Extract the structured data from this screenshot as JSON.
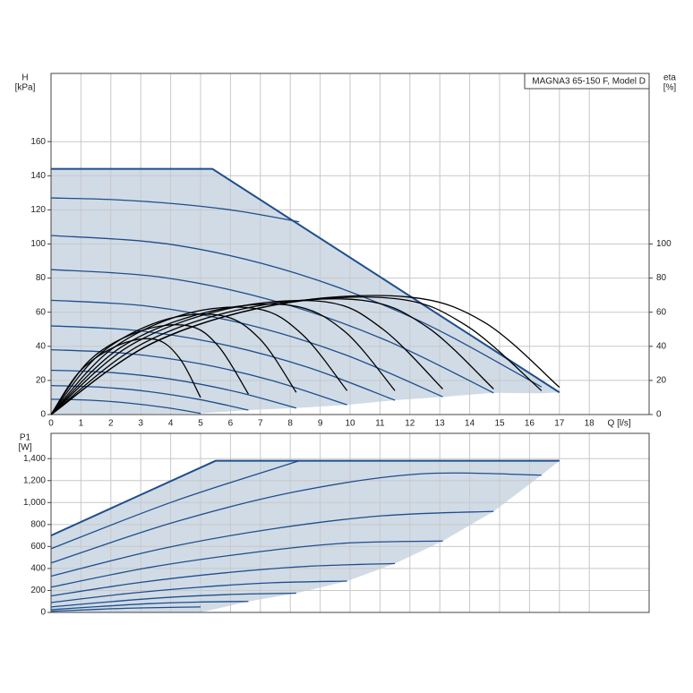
{
  "chart_data": [
    {
      "type": "line",
      "annotation": "MAGNA3 65-150 F, Model D",
      "ylabel": [
        "H",
        "[kPa]"
      ],
      "y2label": [
        "eta",
        "[%]"
      ],
      "xlabel": "Q [l/s]",
      "xlim": [
        0,
        20
      ],
      "xticks": [
        0,
        1,
        2,
        3,
        4,
        5,
        6,
        7,
        8,
        9,
        10,
        11,
        12,
        13,
        14,
        15,
        16,
        17,
        18
      ],
      "xtick_labels": true,
      "ylim": [
        0,
        200
      ],
      "yticks": [
        0,
        20,
        40,
        60,
        80,
        100,
        120,
        140,
        160
      ],
      "y2lim": [
        0,
        200
      ],
      "y2ticks": [
        0,
        20,
        40,
        60,
        80,
        100
      ],
      "grid": true,
      "envelope": {
        "color": "#d0dbe6",
        "upper": {
          "x": [
            0,
            5.4,
            17
          ],
          "values": [
            144,
            144,
            13
          ]
        },
        "lower": {
          "x": [
            0,
            5,
            6.6,
            8.2,
            9.9,
            11.5,
            13.1,
            14.8,
            16.4,
            17
          ],
          "values": [
            0,
            0.7,
            2.6,
            3.8,
            5.7,
            8.4,
            10.4,
            12.7,
            12.5,
            13
          ]
        }
      },
      "series": [
        {
          "color": "#1f4e8c",
          "width": 2,
          "smooth": false,
          "x": [
            0,
            5.4,
            17
          ],
          "values": [
            144,
            144,
            13
          ]
        },
        {
          "color": "#1f4e8c",
          "x": [
            0,
            2.1,
            4.2,
            6.2,
            8.3
          ],
          "values": [
            127,
            126,
            123.5,
            119.5,
            113
          ]
        },
        {
          "color": "#1f4e8c",
          "x": [
            0,
            4.1,
            8.2,
            12.3,
            16.4
          ],
          "values": [
            105,
            99.5,
            82.8,
            55.1,
            16.2
          ]
        },
        {
          "color": "#1f4e8c",
          "x": [
            0,
            3.7,
            7.4,
            11.1,
            14.8
          ],
          "values": [
            85,
            80.5,
            66.9,
            44.3,
            12.7
          ]
        },
        {
          "color": "#1f4e8c",
          "x": [
            0,
            3.3,
            6.6,
            9.8,
            13.1
          ],
          "values": [
            67,
            63.4,
            52.6,
            35.3,
            10.4
          ]
        },
        {
          "color": "#1f4e8c",
          "x": [
            0,
            2.9,
            5.8,
            8.6,
            11.5
          ],
          "values": [
            52,
            49.2,
            40.9,
            27.6,
            8.4
          ]
        },
        {
          "color": "#1f4e8c",
          "x": [
            0,
            2.5,
            5,
            7.4,
            9.9
          ],
          "values": [
            38,
            35.9,
            29.7,
            19.9,
            5.7
          ]
        },
        {
          "color": "#1f4e8c",
          "x": [
            0,
            2.1,
            4.1,
            6.2,
            8.2
          ],
          "values": [
            26,
            24.5,
            20.5,
            13.3,
            3.8
          ]
        },
        {
          "color": "#1f4e8c",
          "x": [
            0,
            1.7,
            3.3,
            5,
            6.6
          ],
          "values": [
            17,
            16,
            13.4,
            8.7,
            2.6
          ]
        },
        {
          "color": "#1f4e8c",
          "x": [
            0,
            1.3,
            2.5,
            3.8,
            5
          ],
          "values": [
            9,
            8.4,
            6.9,
            4.2,
            0.7
          ]
        },
        {
          "color": "#000000",
          "axis": "y2",
          "x": [
            0,
            1,
            2.3,
            3.5,
            4.3,
            5
          ],
          "values": [
            0,
            26,
            41,
            44,
            33,
            10
          ]
        },
        {
          "color": "#000000",
          "axis": "y2",
          "x": [
            0,
            1.3,
            3,
            4.6,
            5.6,
            6.6
          ],
          "values": [
            0,
            32,
            49,
            52,
            40,
            12
          ]
        },
        {
          "color": "#000000",
          "axis": "y2",
          "x": [
            0,
            1.6,
            3.7,
            5.7,
            7,
            8.2
          ],
          "values": [
            0,
            35,
            55,
            58,
            44,
            13
          ]
        },
        {
          "color": "#000000",
          "axis": "y2",
          "x": [
            0,
            2,
            4.5,
            6.9,
            8.4,
            9.9
          ],
          "values": [
            0,
            38,
            59,
            62,
            47,
            14
          ]
        },
        {
          "color": "#000000",
          "axis": "y2",
          "x": [
            0,
            2.3,
            5.2,
            8,
            9.8,
            11.5
          ],
          "values": [
            0,
            39,
            60,
            64,
            49,
            14
          ]
        },
        {
          "color": "#000000",
          "axis": "y2",
          "x": [
            0,
            2.6,
            5.9,
            9.2,
            11.1,
            13.1
          ],
          "values": [
            0,
            40,
            62,
            66,
            50,
            15
          ]
        },
        {
          "color": "#000000",
          "axis": "y2",
          "x": [
            0,
            3,
            6.7,
            10.4,
            12.6,
            14.8
          ],
          "values": [
            0,
            41,
            63,
            67,
            51,
            15
          ]
        },
        {
          "color": "#000000",
          "axis": "y2",
          "x": [
            0,
            3.3,
            7.4,
            11.5,
            13.9,
            16.4
          ],
          "values": [
            0,
            41,
            64,
            68,
            52,
            14
          ]
        },
        {
          "color": "#000000",
          "axis": "y2",
          "x": [
            0,
            3.4,
            7.7,
            11.9,
            14.5,
            17
          ],
          "values": [
            0,
            42,
            65,
            69,
            54,
            16
          ]
        }
      ]
    },
    {
      "type": "line",
      "ylabel": [
        "P1",
        "[W]"
      ],
      "xlim": [
        0,
        20
      ],
      "xticks": [
        0,
        1,
        2,
        3,
        4,
        5,
        6,
        7,
        8,
        9,
        10,
        11,
        12,
        13,
        14,
        15,
        16,
        17,
        18
      ],
      "xtick_labels": false,
      "ylim": [
        0,
        1630
      ],
      "yticks": [
        0,
        200,
        400,
        600,
        800,
        {
          "value": 1000,
          "label": "1,000"
        },
        {
          "value": 1200,
          "label": "1,200"
        },
        {
          "value": 1400,
          "label": "1,400"
        }
      ],
      "grid": true,
      "envelope": {
        "color": "#d0dbe6",
        "upper": {
          "x": [
            0,
            5.5,
            17
          ],
          "values": [
            700,
            1380,
            1380
          ]
        },
        "lower": {
          "x": [
            0,
            5,
            6.6,
            8.2,
            9.9,
            11.5,
            13.1,
            14.8,
            16.4,
            17
          ],
          "values": [
            0,
            0,
            100,
            175,
            285,
            445,
            650,
            920,
            1250,
            1380
          ]
        }
      },
      "series": [
        {
          "color": "#1f4e8c",
          "width": 2,
          "smooth": false,
          "x": [
            0,
            5.5,
            17
          ],
          "values": [
            700,
            1380,
            1380
          ]
        },
        {
          "color": "#1f4e8c",
          "x": [
            0,
            4.1,
            8.3
          ],
          "values": [
            580,
            1010,
            1380
          ]
        },
        {
          "color": "#1f4e8c",
          "x": [
            0,
            4.1,
            8.2,
            12.3,
            16.4
          ],
          "values": [
            450,
            820,
            1100,
            1260,
            1250
          ]
        },
        {
          "color": "#1f4e8c",
          "x": [
            0,
            3.7,
            7.4,
            11.1,
            14.8
          ],
          "values": [
            330,
            580,
            760,
            880,
            920
          ]
        },
        {
          "color": "#1f4e8c",
          "x": [
            0,
            3.3,
            6.6,
            9.8,
            13.1
          ],
          "values": [
            230,
            410,
            540,
            630,
            650
          ]
        },
        {
          "color": "#1f4e8c",
          "x": [
            0,
            2.9,
            5.8,
            8.6,
            11.5
          ],
          "values": [
            150,
            270,
            360,
            420,
            445
          ]
        },
        {
          "color": "#1f4e8c",
          "x": [
            0,
            2.5,
            5,
            7.4,
            9.9
          ],
          "values": [
            90,
            170,
            230,
            270,
            285
          ]
        },
        {
          "color": "#1f4e8c",
          "x": [
            0,
            2.1,
            4.1,
            6.2,
            8.2
          ],
          "values": [
            50,
            100,
            140,
            165,
            175
          ]
        },
        {
          "color": "#1f4e8c",
          "x": [
            0,
            1.7,
            3.3,
            5,
            6.6
          ],
          "values": [
            25,
            55,
            80,
            95,
            100
          ]
        },
        {
          "color": "#1f4e8c",
          "x": [
            0,
            1.3,
            2.5,
            3.8,
            5
          ],
          "values": [
            10,
            25,
            38,
            45,
            50
          ]
        }
      ]
    }
  ]
}
